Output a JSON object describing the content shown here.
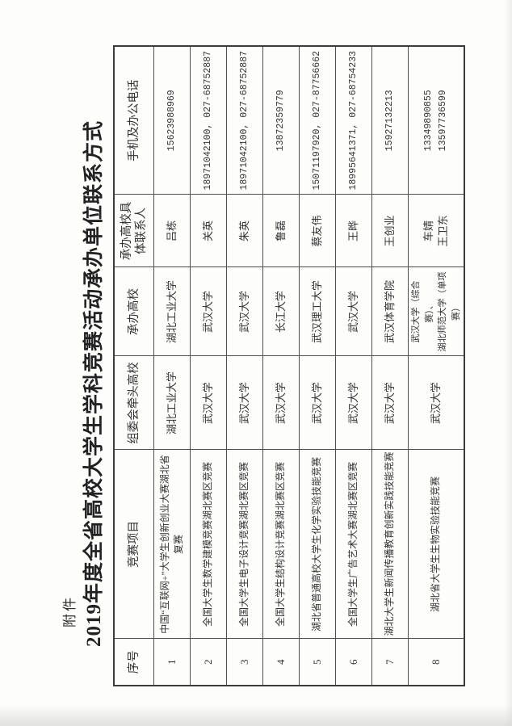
{
  "page": {
    "attachment_label": "附件",
    "title": "2019年度全省高校大学生学科竞赛活动承办单位联系方式"
  },
  "table": {
    "headers": {
      "no": "序号",
      "project": "竞赛项目",
      "lead": "组委会牵头高校",
      "host": "承办高校",
      "contact": "承办高校具\n体联系人",
      "phone": "手机及办公电话"
    },
    "rows": [
      {
        "no": "1",
        "project": "中国“互联网+”大学生创新创业大赛湖北省\n复赛",
        "lead": "湖北工业大学",
        "host": "湖北工业大学",
        "contact": "吕栋",
        "phone": "15623988969"
      },
      {
        "no": "2",
        "project": "全国大学生数学建模竞赛湖北赛区竞赛",
        "lead": "武汉大学",
        "host": "武汉大学",
        "contact": "关英",
        "phone": "18971042100, 027-68752887"
      },
      {
        "no": "3",
        "project": "全国大学生电子设计竞赛湖北赛区竞赛",
        "lead": "武汉大学",
        "host": "武汉大学",
        "contact": "朱英",
        "phone": "18971042100, 027-68752887"
      },
      {
        "no": "4",
        "project": "全国大学生结构设计竞赛湖北赛区竞赛",
        "lead": "武汉大学",
        "host": "长江大学",
        "contact": "鲁磊",
        "phone": "13872359779"
      },
      {
        "no": "5",
        "project": "湖北省普通高校大学生化学实验技能竞赛",
        "lead": "武汉大学",
        "host": "武汉理工大学",
        "contact": "蔡友伟",
        "phone": "15071197920, 027-87756662"
      },
      {
        "no": "6",
        "project": "全国大学生广告艺术大赛湖北赛区竞赛",
        "lead": "武汉大学",
        "host": "武汉大学",
        "contact": "王晔",
        "phone": "18995641371, 027-68754233"
      },
      {
        "no": "7",
        "project": "湖北大学生新闻传播教育创新实践技能竞赛",
        "lead": "武汉大学",
        "host": "武汉体育学院",
        "contact": "王创业",
        "phone": "15927132213"
      },
      {
        "no": "8",
        "project": "湖北省大学生生物实验技能竞赛",
        "lead": "武汉大学",
        "host": "武汉大学（综合赛）、\n湖北师范大学（单项赛）",
        "contact": "车婧\n王卫东",
        "phone": "13349890855\n13597736599"
      }
    ]
  }
}
